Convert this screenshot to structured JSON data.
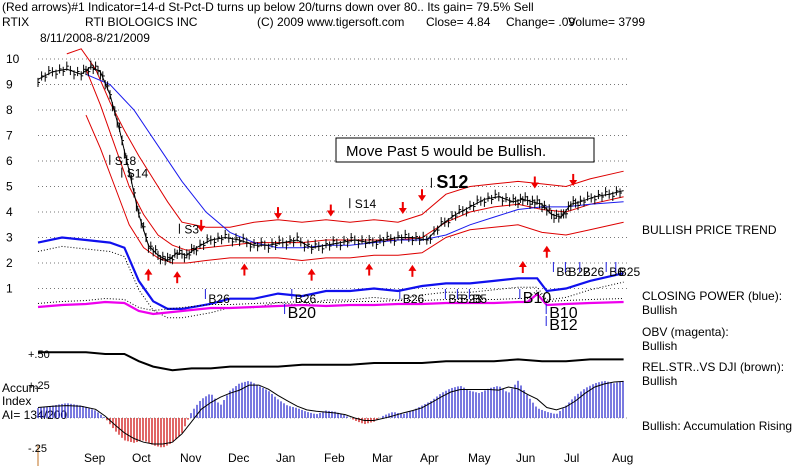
{
  "header": {
    "line1": "(Red arrows)#1 Indicator=14-d St-Pct-D turns up below 20/turns down over 80.. Its gain= 79.5% Sell",
    "symbol": "RTIX",
    "company": "RTI BIOLOGICS INC",
    "copyright": "(C) 2009 www.tigersoft.com",
    "close": "Close=  4.84",
    "change": "Change= .09",
    "volume": "Volume= 3799",
    "date_range": "8/11/2008-8/21/2009"
  },
  "callout": "Move Past 5 would be Bullish.",
  "right_labels": [
    {
      "text": "BULLISH PRICE TREND"
    },
    {
      "text": "CLOSING POWER (blue):"
    },
    {
      "text": "Bullish"
    },
    {
      "text": "OBV (magenta):"
    },
    {
      "text": "Bullish"
    },
    {
      "text": "REL.STR..VS DJI (brown):"
    },
    {
      "text": "Bullish"
    },
    {
      "text": "Bullish: Accumulation Rising"
    }
  ],
  "accum": {
    "title1": "Accum",
    "title2": "Index",
    "title3": "AI= 134/200",
    "ticks": [
      "+.50",
      "+.25",
      "-.25"
    ]
  },
  "signals": {
    "price": [
      {
        "label": "S18",
        "m": 1.6,
        "y": 5.85
      },
      {
        "label": "S14",
        "m": 1.85,
        "y": 5.35
      },
      {
        "label": "S3",
        "m": 3.05,
        "y": 3.15
      },
      {
        "label": "S14",
        "m": 6.6,
        "y": 4.15
      },
      {
        "label": "S12",
        "m": 8.3,
        "y": 4.95,
        "big": true
      }
    ],
    "power": [
      {
        "label": "B26",
        "m": 3.55,
        "row": 0
      },
      {
        "label": "B26",
        "m": 5.35,
        "row": 0
      },
      {
        "label": "B20",
        "m": 5.2,
        "row": 1,
        "big": true
      },
      {
        "label": "B26",
        "m": 7.6,
        "row": 0
      },
      {
        "label": "B5",
        "m": 8.55,
        "row": 0
      },
      {
        "label": "B23",
        "m": 8.8,
        "row": 0
      },
      {
        "label": "B5",
        "m": 9.05,
        "row": 0
      },
      {
        "label": "B10",
        "m": 10.1,
        "row": 0,
        "big": true
      },
      {
        "label": "B10",
        "m": 10.65,
        "row": 1,
        "big": true
      },
      {
        "label": "B12",
        "m": 10.65,
        "row": 2,
        "big": true
      },
      {
        "label": "B6",
        "m": 10.8,
        "row": -1
      },
      {
        "label": "B22",
        "m": 11.05,
        "row": -1
      },
      {
        "label": "B26",
        "m": 11.35,
        "row": -1
      },
      {
        "label": "B6",
        "m": 11.9,
        "row": -1
      },
      {
        "label": "B25",
        "m": 12.1,
        "row": -1
      }
    ]
  },
  "chart_data": {
    "type": "line",
    "x_tick_labels": [
      "Sep",
      "Oct",
      "Nov",
      "Dec",
      "Jan",
      "Feb",
      "Mar",
      "Apr",
      "May",
      "Jun",
      "Jul",
      "Aug"
    ],
    "y_tick_labels": [
      "10",
      "9",
      "8",
      "7",
      "6",
      "5",
      "4",
      "3",
      "2",
      "1"
    ],
    "ylim": [
      0.7,
      10.5
    ],
    "grid": true,
    "colors": {
      "price": "#000000",
      "bands": "#dd0000",
      "moving_average": "#1a1aee",
      "closing_power": "#1010ee",
      "obv": "#ee00ee",
      "relative_strength": "#000000",
      "accum_positive": "#2020cc",
      "accum_negative": "#cc0000",
      "arrow_red": "#ee0000",
      "arrow_blue": "#2020dd"
    },
    "price_series": {
      "m": [
        0.0,
        0.3,
        0.6,
        0.9,
        1.1,
        1.3,
        1.5,
        1.7,
        1.9,
        2.1,
        2.3,
        2.5,
        2.7,
        2.9,
        3.1,
        3.3,
        3.6,
        3.9,
        4.2,
        4.5,
        4.8,
        5.1,
        5.4,
        5.7,
        6.0,
        6.3,
        6.6,
        6.9,
        7.2,
        7.5,
        7.8,
        8.1,
        8.4,
        8.7,
        9.0,
        9.3,
        9.6,
        9.9,
        10.1,
        10.3,
        10.5,
        10.7,
        10.9,
        11.1,
        11.3,
        11.6,
        11.9,
        12.2
      ],
      "close": [
        9.2,
        9.5,
        9.6,
        9.4,
        9.7,
        9.5,
        8.6,
        7.2,
        5.6,
        3.9,
        2.7,
        2.3,
        2.1,
        2.4,
        2.3,
        2.6,
        2.9,
        3.0,
        2.9,
        2.7,
        2.7,
        2.8,
        2.9,
        2.6,
        2.7,
        2.8,
        2.9,
        2.8,
        2.9,
        3.0,
        3.0,
        2.9,
        3.5,
        3.9,
        4.2,
        4.5,
        4.6,
        4.4,
        4.5,
        4.4,
        4.3,
        3.9,
        3.8,
        4.3,
        4.4,
        4.6,
        4.7,
        4.84
      ]
    },
    "band_upper": {
      "m": [
        0.6,
        0.9,
        1.2,
        1.5,
        1.8,
        2.1,
        2.4,
        2.7,
        3.0,
        3.5,
        4.0,
        4.5,
        5.0,
        5.5,
        6.0,
        6.5,
        7.0,
        7.5,
        8.0,
        8.5,
        9.0,
        9.5,
        10.0,
        10.5,
        11.0,
        11.5,
        12.2
      ],
      "v": [
        10.2,
        10.4,
        9.6,
        8.3,
        7.2,
        6.2,
        5.3,
        4.4,
        3.6,
        3.4,
        3.4,
        3.6,
        3.7,
        3.6,
        3.7,
        3.6,
        3.7,
        3.6,
        3.9,
        4.7,
        5.0,
        5.1,
        5.2,
        5.1,
        5.0,
        5.3,
        5.6
      ]
    },
    "band_lower": {
      "m": [
        1.0,
        1.3,
        1.6,
        1.9,
        2.2,
        2.5,
        2.8,
        3.1,
        3.5,
        4.0,
        4.5,
        5.0,
        5.5,
        6.0,
        6.5,
        7.0,
        7.5,
        8.0,
        8.5,
        9.0,
        9.5,
        10.0,
        10.5,
        11.0,
        11.5,
        12.2
      ],
      "v": [
        7.8,
        6.5,
        5.0,
        3.5,
        2.6,
        2.2,
        2.0,
        2.0,
        2.1,
        2.2,
        2.2,
        2.2,
        2.1,
        2.2,
        2.2,
        2.3,
        2.3,
        2.4,
        3.0,
        3.3,
        3.4,
        3.5,
        3.2,
        3.1,
        3.3,
        3.6
      ]
    },
    "band_mid": {
      "m": [
        1.0,
        1.3,
        1.6,
        1.9,
        2.2,
        2.5,
        2.8,
        3.1,
        3.5,
        4.0,
        4.5,
        5.0,
        5.5,
        6.0,
        6.5,
        7.0,
        7.5,
        8.0,
        8.5,
        9.0,
        9.5,
        10.0,
        10.5,
        11.0,
        11.5,
        12.2
      ],
      "v": [
        9.6,
        8.2,
        6.6,
        5.0,
        3.9,
        3.1,
        2.7,
        2.5,
        2.6,
        2.7,
        2.8,
        2.8,
        2.8,
        2.9,
        2.9,
        2.9,
        2.9,
        3.0,
        3.6,
        4.0,
        4.2,
        4.3,
        4.1,
        4.0,
        4.3,
        4.6
      ]
    },
    "moving_average": {
      "m": [
        1.0,
        1.5,
        2.0,
        2.5,
        3.0,
        3.5,
        4.0,
        4.5,
        5.0,
        5.5,
        6.0,
        6.5,
        7.0,
        7.5,
        8.0,
        8.5,
        9.0,
        9.5,
        10.0,
        10.5,
        11.0,
        11.5,
        12.2
      ],
      "v": [
        9.4,
        9.0,
        8.0,
        6.6,
        5.2,
        4.0,
        3.2,
        2.8,
        2.6,
        2.6,
        2.7,
        2.7,
        2.8,
        2.9,
        2.9,
        3.1,
        3.5,
        3.8,
        4.1,
        4.2,
        4.2,
        4.3,
        4.4
      ]
    },
    "closing_power": {
      "m": [
        0.0,
        0.5,
        1.0,
        1.5,
        1.8,
        2.1,
        2.4,
        2.7,
        3.0,
        3.3,
        3.6,
        4.0,
        4.5,
        5.0,
        5.5,
        6.0,
        6.5,
        7.0,
        7.5,
        8.0,
        8.5,
        9.0,
        9.5,
        10.0,
        10.2,
        10.4,
        10.6,
        11.0,
        11.5,
        12.2
      ],
      "v": [
        2.8,
        3.0,
        2.9,
        2.8,
        2.6,
        1.3,
        0.5,
        0.2,
        0.2,
        0.3,
        0.4,
        0.6,
        0.6,
        0.8,
        0.7,
        0.9,
        0.9,
        1.0,
        0.9,
        1.1,
        1.2,
        1.2,
        1.3,
        1.4,
        1.4,
        1.4,
        0.9,
        1.0,
        1.3,
        1.6
      ]
    },
    "obv": {
      "m": [
        0.0,
        0.5,
        1.0,
        1.4,
        1.8,
        2.1,
        2.4,
        2.8,
        3.2,
        3.6,
        4.0,
        4.5,
        5.0,
        5.5,
        6.0,
        6.5,
        7.0,
        7.5,
        8.0,
        8.5,
        9.0,
        9.5,
        10.0,
        10.2,
        10.4,
        10.6,
        11.0,
        11.5,
        12.2
      ],
      "v": [
        -0.1,
        0.1,
        0.2,
        0.4,
        0.3,
        -0.5,
        -0.8,
        -0.6,
        -0.4,
        -0.2,
        -0.2,
        -0.1,
        0.0,
        0.1,
        0.0,
        0.1,
        0.1,
        0.2,
        0.2,
        0.3,
        0.3,
        0.3,
        0.4,
        0.4,
        1.2,
        0.1,
        0.2,
        0.3,
        0.4
      ]
    },
    "relative_strength": {
      "m": [
        0.0,
        0.5,
        1.0,
        1.4,
        1.8,
        2.1,
        2.4,
        2.8,
        3.2,
        3.6,
        4.0,
        4.5,
        5.0,
        5.5,
        6.0,
        6.5,
        7.0,
        7.5,
        8.0,
        8.5,
        9.0,
        9.5,
        10.0,
        10.5,
        11.0,
        11.5,
        12.2
      ],
      "v": [
        -0.9,
        -0.9,
        -0.9,
        -1.0,
        -1.0,
        -1.4,
        -1.7,
        -1.9,
        -1.8,
        -1.8,
        -1.7,
        -1.7,
        -1.7,
        -1.6,
        -1.6,
        -1.6,
        -1.5,
        -1.5,
        -1.5,
        -1.4,
        -1.4,
        -1.4,
        -1.3,
        -1.4,
        -1.4,
        -1.3,
        -1.3
      ]
    },
    "accum_index": {
      "m": [
        0.0,
        0.3,
        0.6,
        0.9,
        1.2,
        1.4,
        1.6,
        1.8,
        2.0,
        2.2,
        2.4,
        2.6,
        2.8,
        3.0,
        3.2,
        3.4,
        3.6,
        3.8,
        4.0,
        4.2,
        4.4,
        4.6,
        4.8,
        5.0,
        5.2,
        5.4,
        5.6,
        5.8,
        6.0,
        6.2,
        6.4,
        6.6,
        6.8,
        7.0,
        7.2,
        7.4,
        7.6,
        7.8,
        8.0,
        8.2,
        8.4,
        8.6,
        8.8,
        9.0,
        9.2,
        9.4,
        9.6,
        9.8,
        10.0,
        10.2,
        10.4,
        10.6,
        10.8,
        11.0,
        11.2,
        11.4,
        11.6,
        11.8,
        12.0,
        12.2
      ],
      "v": [
        0.08,
        0.1,
        0.12,
        0.1,
        0.06,
        0.0,
        -0.1,
        -0.18,
        -0.2,
        -0.18,
        -0.22,
        -0.24,
        -0.2,
        -0.12,
        0.05,
        0.15,
        0.2,
        0.1,
        0.22,
        0.28,
        0.3,
        0.26,
        0.22,
        0.15,
        0.1,
        0.08,
        0.05,
        0.03,
        0.06,
        0.05,
        0.02,
        -0.02,
        -0.05,
        -0.03,
        0.02,
        0.05,
        0.03,
        0.06,
        0.1,
        0.14,
        0.2,
        0.24,
        0.26,
        0.22,
        0.2,
        0.24,
        0.26,
        0.2,
        0.3,
        0.18,
        0.08,
        0.05,
        0.03,
        0.1,
        0.18,
        0.24,
        0.28,
        0.3,
        0.28,
        0.3
      ]
    },
    "red_arrows": [
      {
        "dir": "up",
        "m": 2.3,
        "y": 1.7
      },
      {
        "dir": "up",
        "m": 2.9,
        "y": 1.6
      },
      {
        "dir": "down",
        "m": 3.4,
        "y": 3.3
      },
      {
        "dir": "up",
        "m": 4.3,
        "y": 1.9
      },
      {
        "dir": "down",
        "m": 5.0,
        "y": 3.8
      },
      {
        "dir": "up",
        "m": 5.7,
        "y": 1.7
      },
      {
        "dir": "down",
        "m": 6.1,
        "y": 3.9
      },
      {
        "dir": "up",
        "m": 6.9,
        "y": 1.9
      },
      {
        "dir": "down",
        "m": 7.6,
        "y": 4.0
      },
      {
        "dir": "down",
        "m": 8.0,
        "y": 4.5
      },
      {
        "dir": "up",
        "m": 7.8,
        "y": 1.85
      },
      {
        "dir": "up",
        "m": 10.1,
        "y": 2.0
      },
      {
        "dir": "down",
        "m": 10.35,
        "y": 5.0
      },
      {
        "dir": "up",
        "m": 10.6,
        "y": 2.6
      },
      {
        "dir": "down",
        "m": 11.15,
        "y": 5.1
      }
    ]
  }
}
